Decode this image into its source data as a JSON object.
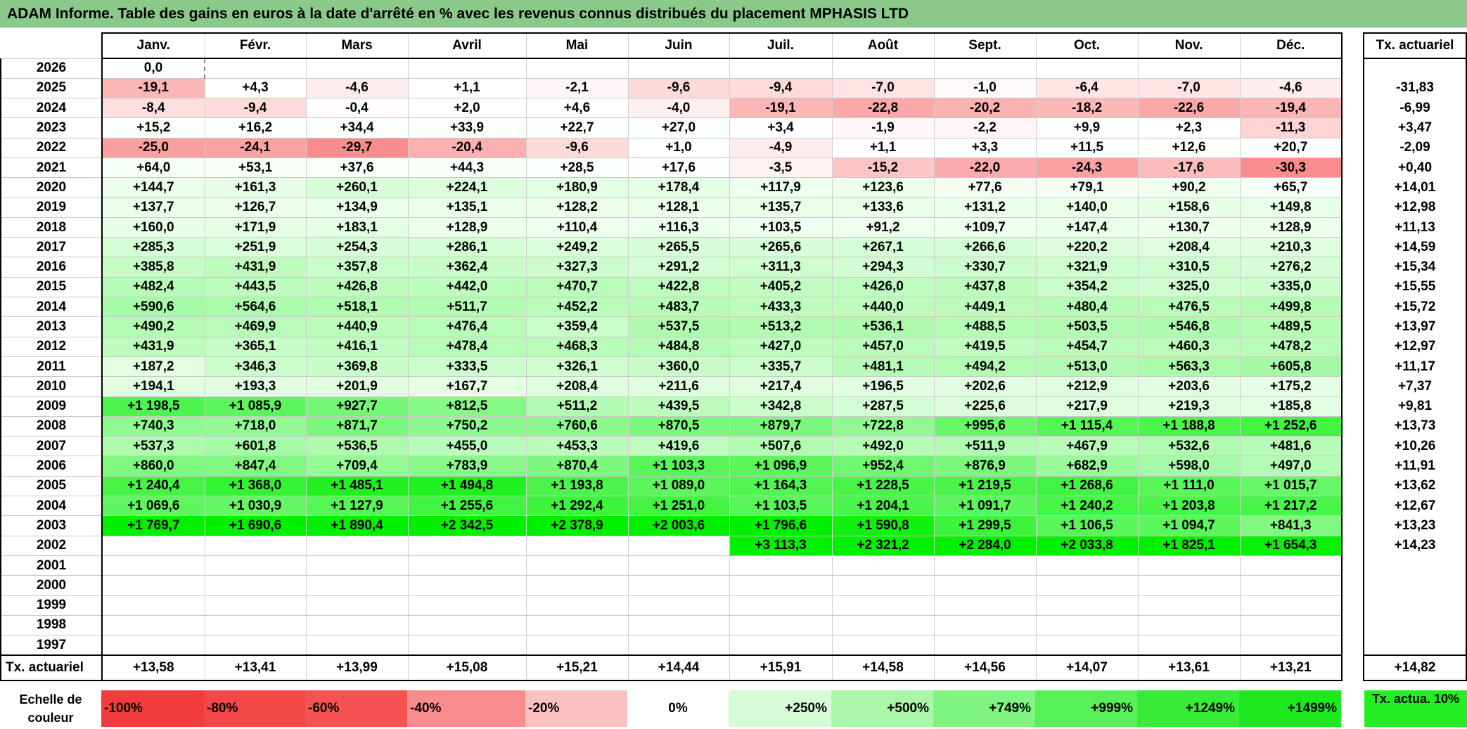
{
  "title": "ADAM Informe. Table des gains en euros à la date d'arrêté en % avec les revenus connus distribués du placement MPHASIS LTD",
  "months": [
    "Janv.",
    "Févr.",
    "Mars",
    "Avril",
    "Mai",
    "Juin",
    "Juil.",
    "Août",
    "Sept.",
    "Oct.",
    "Nov.",
    "Déc."
  ],
  "rate_header": "Tx. actuariel",
  "rows": [
    {
      "year": "2026",
      "values": [
        "0,0",
        "",
        "",
        "",
        "",
        "",
        "",
        "",
        "",
        "",
        "",
        ""
      ],
      "rate": ""
    },
    {
      "year": "2025",
      "values": [
        "-19,1",
        "+4,3",
        "-4,6",
        "+1,1",
        "-2,1",
        "-9,6",
        "-9,4",
        "-7,0",
        "-1,0",
        "-6,4",
        "-7,0",
        "-4,6"
      ],
      "rate": "-31,83"
    },
    {
      "year": "2024",
      "values": [
        "-8,4",
        "-9,4",
        "-0,4",
        "+2,0",
        "+4,6",
        "-4,0",
        "-19,1",
        "-22,8",
        "-20,2",
        "-18,2",
        "-22,6",
        "-19,4"
      ],
      "rate": "-6,99"
    },
    {
      "year": "2023",
      "values": [
        "+15,2",
        "+16,2",
        "+34,4",
        "+33,9",
        "+22,7",
        "+27,0",
        "+3,4",
        "-1,9",
        "-2,2",
        "+9,9",
        "+2,3",
        "-11,3"
      ],
      "rate": "+3,47"
    },
    {
      "year": "2022",
      "values": [
        "-25,0",
        "-24,1",
        "-29,7",
        "-20,4",
        "-9,6",
        "+1,0",
        "-4,9",
        "+1,1",
        "+3,3",
        "+11,5",
        "+12,6",
        "+20,7"
      ],
      "rate": "-2,09"
    },
    {
      "year": "2021",
      "values": [
        "+64,0",
        "+53,1",
        "+37,6",
        "+44,3",
        "+28,5",
        "+17,6",
        "-3,5",
        "-15,2",
        "-22,0",
        "-24,3",
        "-17,6",
        "-30,3"
      ],
      "rate": "+0,40"
    },
    {
      "year": "2020",
      "values": [
        "+144,7",
        "+161,3",
        "+260,1",
        "+224,1",
        "+180,9",
        "+178,4",
        "+117,9",
        "+123,6",
        "+77,6",
        "+79,1",
        "+90,2",
        "+65,7"
      ],
      "rate": "+14,01"
    },
    {
      "year": "2019",
      "values": [
        "+137,7",
        "+126,7",
        "+134,9",
        "+135,1",
        "+128,2",
        "+128,1",
        "+135,7",
        "+133,6",
        "+131,2",
        "+140,0",
        "+158,6",
        "+149,8"
      ],
      "rate": "+12,98"
    },
    {
      "year": "2018",
      "values": [
        "+160,0",
        "+171,9",
        "+183,1",
        "+128,9",
        "+110,4",
        "+116,3",
        "+103,5",
        "+91,2",
        "+109,7",
        "+147,4",
        "+130,7",
        "+128,9"
      ],
      "rate": "+11,13"
    },
    {
      "year": "2017",
      "values": [
        "+285,3",
        "+251,9",
        "+254,3",
        "+286,1",
        "+249,2",
        "+265,5",
        "+265,6",
        "+267,1",
        "+266,6",
        "+220,2",
        "+208,4",
        "+210,3"
      ],
      "rate": "+14,59"
    },
    {
      "year": "2016",
      "values": [
        "+385,8",
        "+431,9",
        "+357,8",
        "+362,4",
        "+327,3",
        "+291,2",
        "+311,3",
        "+294,3",
        "+330,7",
        "+321,9",
        "+310,5",
        "+276,2"
      ],
      "rate": "+15,34"
    },
    {
      "year": "2015",
      "values": [
        "+482,4",
        "+443,5",
        "+426,8",
        "+442,0",
        "+470,7",
        "+422,8",
        "+405,2",
        "+426,0",
        "+437,8",
        "+354,2",
        "+325,0",
        "+335,0"
      ],
      "rate": "+15,55"
    },
    {
      "year": "2014",
      "values": [
        "+590,6",
        "+564,6",
        "+518,1",
        "+511,7",
        "+452,2",
        "+483,7",
        "+433,3",
        "+440,0",
        "+449,1",
        "+480,4",
        "+476,5",
        "+499,8"
      ],
      "rate": "+15,72"
    },
    {
      "year": "2013",
      "values": [
        "+490,2",
        "+469,9",
        "+440,9",
        "+476,4",
        "+359,4",
        "+537,5",
        "+513,2",
        "+536,1",
        "+488,5",
        "+503,5",
        "+546,8",
        "+489,5"
      ],
      "rate": "+13,97"
    },
    {
      "year": "2012",
      "values": [
        "+431,9",
        "+365,1",
        "+416,1",
        "+478,4",
        "+468,3",
        "+484,8",
        "+427,0",
        "+457,0",
        "+419,5",
        "+454,7",
        "+460,3",
        "+478,2"
      ],
      "rate": "+12,97"
    },
    {
      "year": "2011",
      "values": [
        "+187,2",
        "+346,3",
        "+369,8",
        "+333,5",
        "+326,1",
        "+360,0",
        "+335,7",
        "+481,1",
        "+494,2",
        "+513,0",
        "+563,3",
        "+605,8"
      ],
      "rate": "+11,17"
    },
    {
      "year": "2010",
      "values": [
        "+194,1",
        "+193,3",
        "+201,9",
        "+167,7",
        "+208,4",
        "+211,6",
        "+217,4",
        "+196,5",
        "+202,6",
        "+212,9",
        "+203,6",
        "+175,2"
      ],
      "rate": "+7,37"
    },
    {
      "year": "2009",
      "values": [
        "+1 198,5",
        "+1 085,9",
        "+927,7",
        "+812,5",
        "+511,2",
        "+439,5",
        "+342,8",
        "+287,5",
        "+225,6",
        "+217,9",
        "+219,3",
        "+185,8"
      ],
      "rate": "+9,81"
    },
    {
      "year": "2008",
      "values": [
        "+740,3",
        "+718,0",
        "+871,7",
        "+750,2",
        "+760,6",
        "+870,5",
        "+879,7",
        "+722,8",
        "+995,6",
        "+1 115,4",
        "+1 188,8",
        "+1 252,6"
      ],
      "rate": "+13,73"
    },
    {
      "year": "2007",
      "values": [
        "+537,3",
        "+601,8",
        "+536,5",
        "+455,0",
        "+453,3",
        "+419,6",
        "+507,6",
        "+492,0",
        "+511,9",
        "+467,9",
        "+532,6",
        "+481,6"
      ],
      "rate": "+10,26"
    },
    {
      "year": "2006",
      "values": [
        "+860,0",
        "+847,4",
        "+709,4",
        "+783,9",
        "+870,4",
        "+1 103,3",
        "+1 096,9",
        "+952,4",
        "+876,9",
        "+682,9",
        "+598,0",
        "+497,0"
      ],
      "rate": "+11,91"
    },
    {
      "year": "2005",
      "values": [
        "+1 240,4",
        "+1 368,0",
        "+1 485,1",
        "+1 494,8",
        "+1 193,8",
        "+1 089,0",
        "+1 164,3",
        "+1 228,5",
        "+1 219,5",
        "+1 268,6",
        "+1 111,0",
        "+1 015,7"
      ],
      "rate": "+13,62"
    },
    {
      "year": "2004",
      "values": [
        "+1 069,6",
        "+1 030,9",
        "+1 127,9",
        "+1 255,6",
        "+1 292,4",
        "+1 251,0",
        "+1 103,5",
        "+1 204,1",
        "+1 091,7",
        "+1 240,2",
        "+1 203,8",
        "+1 217,2"
      ],
      "rate": "+12,67"
    },
    {
      "year": "2003",
      "values": [
        "+1 769,7",
        "+1 690,6",
        "+1 890,4",
        "+2 342,5",
        "+2 378,9",
        "+2 003,6",
        "+1 796,6",
        "+1 590,8",
        "+1 299,5",
        "+1 106,5",
        "+1 094,7",
        "+841,3"
      ],
      "rate": "+13,23"
    },
    {
      "year": "2002",
      "values": [
        "",
        "",
        "",
        "",
        "",
        "",
        "+3 113,3",
        "+2 321,2",
        "+2 284,0",
        "+2 033,8",
        "+1 825,1",
        "+1 654,3"
      ],
      "rate": "+14,23"
    },
    {
      "year": "2001",
      "values": [
        "",
        "",
        "",
        "",
        "",
        "",
        "",
        "",
        "",
        "",
        "",
        ""
      ],
      "rate": ""
    },
    {
      "year": "2000",
      "values": [
        "",
        "",
        "",
        "",
        "",
        "",
        "",
        "",
        "",
        "",
        "",
        ""
      ],
      "rate": ""
    },
    {
      "year": "1999",
      "values": [
        "",
        "",
        "",
        "",
        "",
        "",
        "",
        "",
        "",
        "",
        "",
        ""
      ],
      "rate": ""
    },
    {
      "year": "1998",
      "values": [
        "",
        "",
        "",
        "",
        "",
        "",
        "",
        "",
        "",
        "",
        "",
        ""
      ],
      "rate": ""
    },
    {
      "year": "1997",
      "values": [
        "",
        "",
        "",
        "",
        "",
        "",
        "",
        "",
        "",
        "",
        "",
        ""
      ],
      "rate": ""
    }
  ],
  "footer": {
    "label": "Tx. actuariel",
    "values": [
      "+13,58",
      "+13,41",
      "+13,99",
      "+15,08",
      "+15,21",
      "+14,44",
      "+15,91",
      "+14,58",
      "+14,56",
      "+14,07",
      "+13,61",
      "+13,21"
    ],
    "rate": "+14,82"
  },
  "scale": {
    "label": "Echelle de couleur",
    "items": [
      {
        "text": "-100%",
        "color": "#f23c3c"
      },
      {
        "text": "-80%",
        "color": "#f44848"
      },
      {
        "text": "-60%",
        "color": "#f65252"
      },
      {
        "text": "-40%",
        "color": "#f98c8c"
      },
      {
        "text": "-20%",
        "color": "#fcc2c2"
      },
      {
        "text": "0%",
        "color": "#ffffff"
      },
      {
        "text": "+250%",
        "color": "#d6fcd6"
      },
      {
        "text": "+500%",
        "color": "#aaf7aa"
      },
      {
        "text": "+749%",
        "color": "#80f480"
      },
      {
        "text": "+999%",
        "color": "#58f058"
      },
      {
        "text": "+1249%",
        "color": "#36ec36"
      },
      {
        "text": "+1499%",
        "color": "#1ee81e"
      }
    ],
    "rate_label": "Tx. actua. 10%",
    "rate_color": "#22ee22"
  }
}
